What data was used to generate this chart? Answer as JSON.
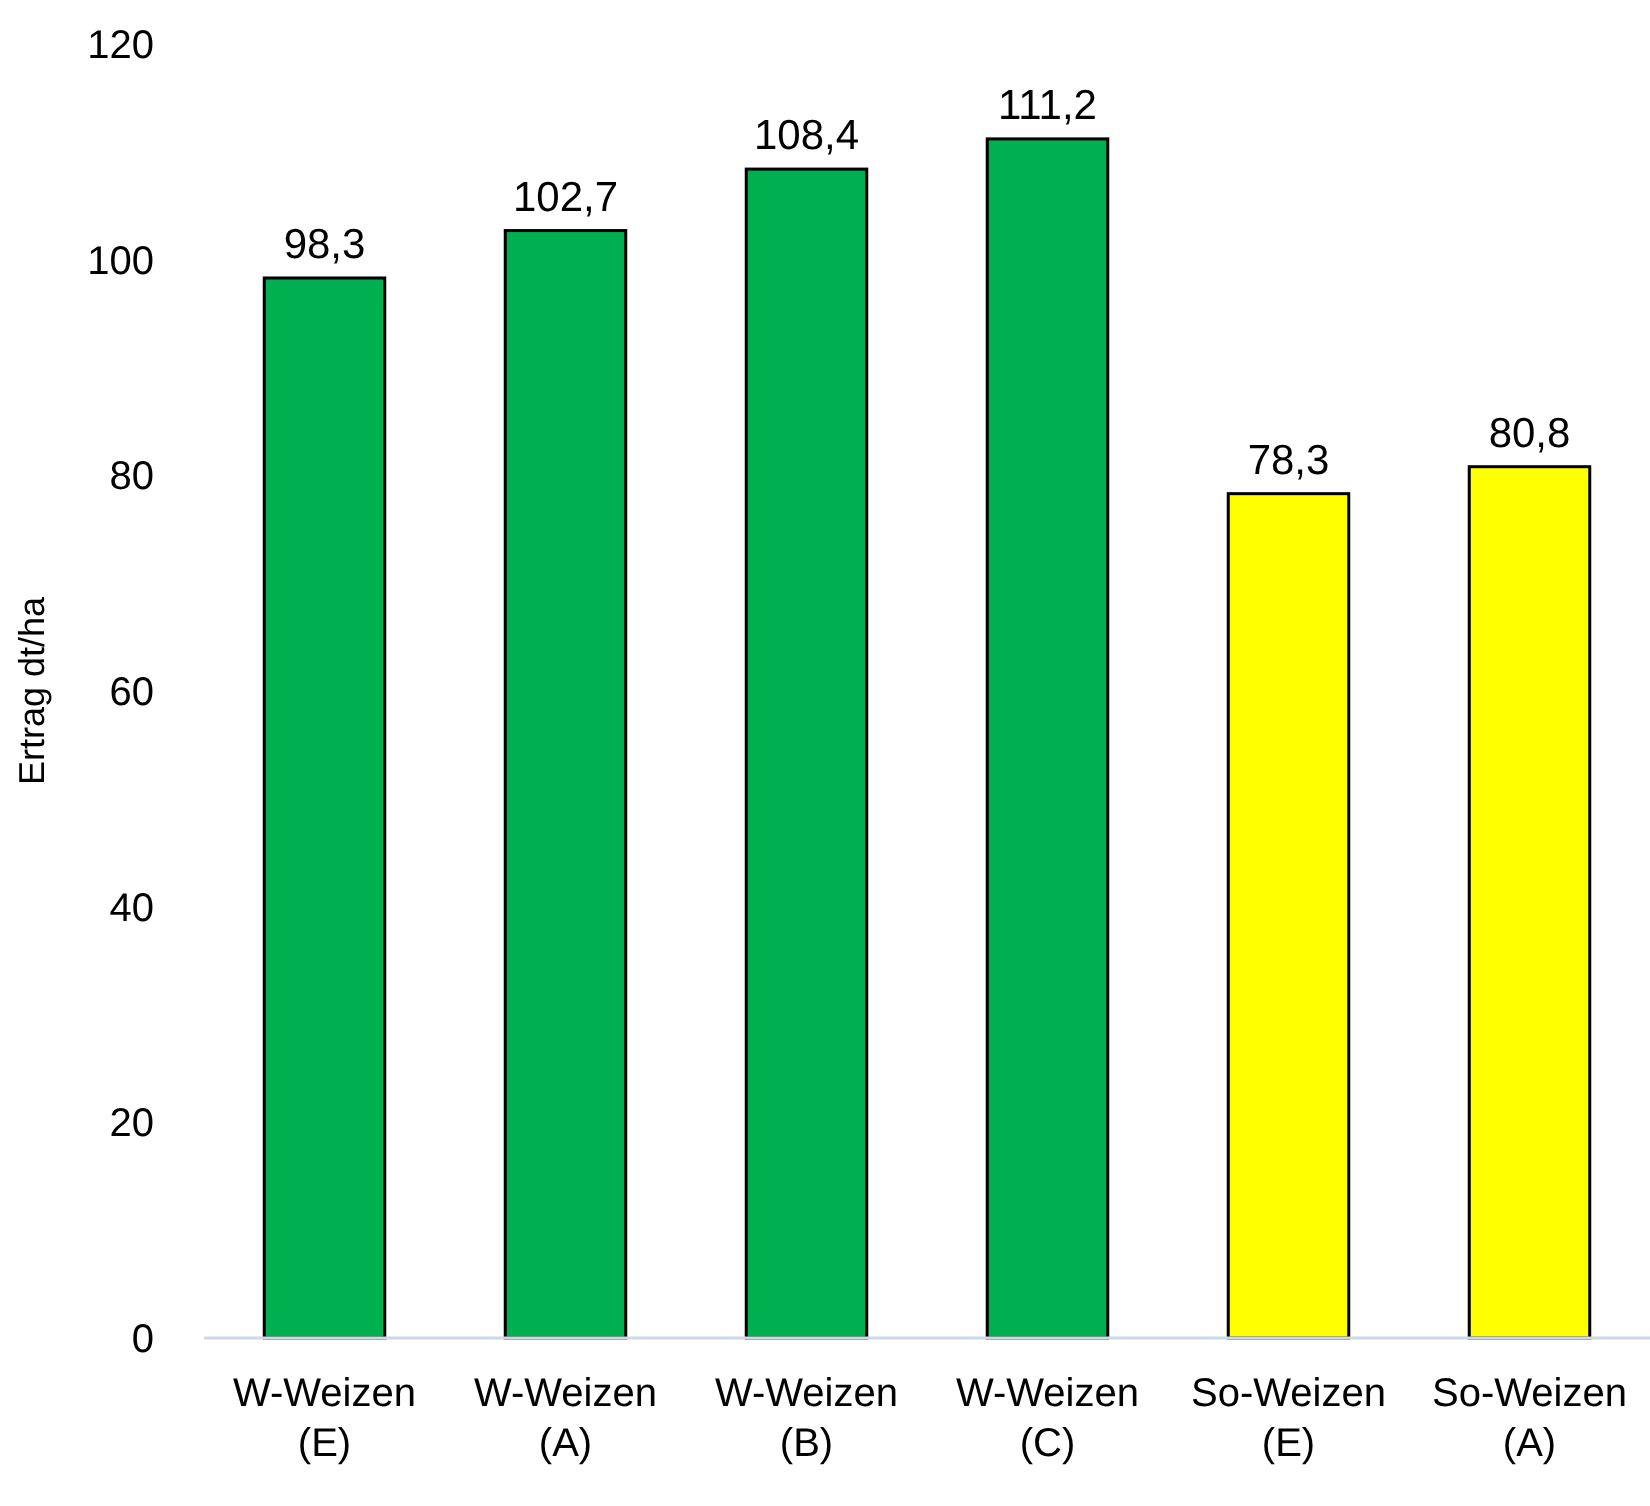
{
  "chart_data": {
    "type": "bar",
    "ylabel": "Ertrag dt/ha",
    "categories": [
      "W-Weizen (E)",
      "W-Weizen (A)",
      "W-Weizen (B)",
      "W-Weizen (C)",
      "So-Weizen (E)",
      "So-Weizen (A)"
    ],
    "values": [
      98.3,
      102.7,
      108.4,
      111.2,
      78.3,
      80.8
    ],
    "colors": [
      "#00b050",
      "#00b050",
      "#00b050",
      "#00b050",
      "#ffff00",
      "#ffff00"
    ],
    "value_labels": [
      "98,3",
      "102,7",
      "108,4",
      "111,2",
      "78,3",
      "80,8"
    ],
    "ylim": [
      0,
      120
    ],
    "yticks": [
      0,
      20,
      40,
      60,
      80,
      100,
      120
    ]
  }
}
